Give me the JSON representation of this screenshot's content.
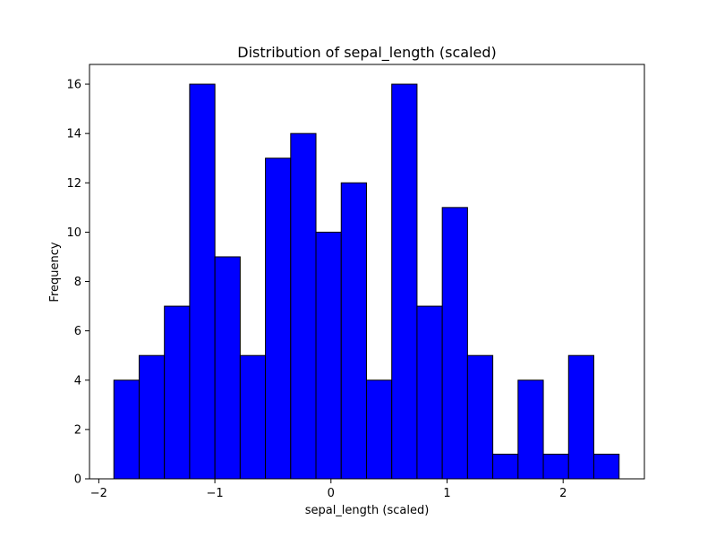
{
  "chart_data": {
    "type": "bar",
    "title": "Distribution of sepal_length (scaled)",
    "xlabel": "sepal_length (scaled)",
    "ylabel": "Frequency",
    "bin_start": -1.87,
    "bin_width": 0.2176,
    "values": [
      4,
      5,
      7,
      16,
      9,
      5,
      13,
      14,
      10,
      12,
      4,
      16,
      7,
      11,
      5,
      1,
      4,
      1,
      5,
      1
    ],
    "xlim": [
      -2.08,
      2.7
    ],
    "ylim": [
      0,
      16.8
    ],
    "xticks": [
      {
        "value": -2,
        "label": "−2"
      },
      {
        "value": -1,
        "label": "−1"
      },
      {
        "value": 0,
        "label": "0"
      },
      {
        "value": 1,
        "label": "1"
      },
      {
        "value": 2,
        "label": "2"
      }
    ],
    "yticks": [
      {
        "value": 0,
        "label": "0"
      },
      {
        "value": 2,
        "label": "2"
      },
      {
        "value": 4,
        "label": "4"
      },
      {
        "value": 6,
        "label": "6"
      },
      {
        "value": 8,
        "label": "8"
      },
      {
        "value": 10,
        "label": "10"
      },
      {
        "value": 12,
        "label": "12"
      },
      {
        "value": 14,
        "label": "14"
      },
      {
        "value": 16,
        "label": "16"
      }
    ],
    "bar_color": "#0000ff",
    "edge_color": "#000000",
    "grid": false
  }
}
